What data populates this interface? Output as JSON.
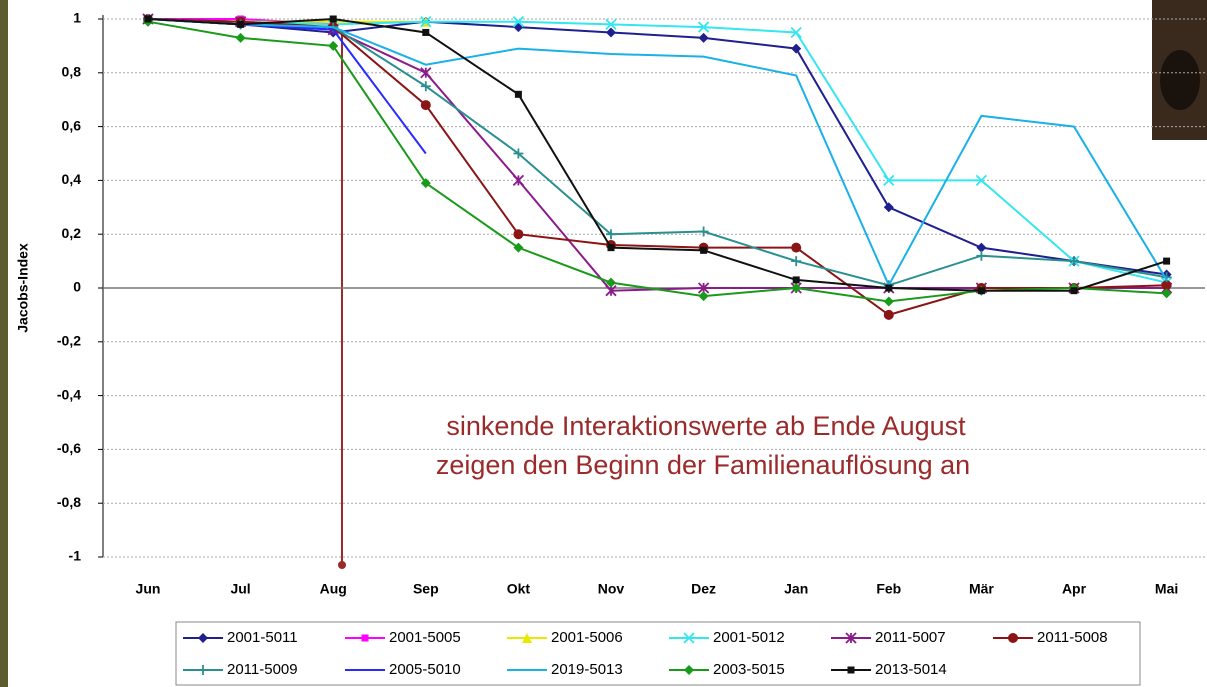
{
  "chart_data": {
    "type": "line",
    "y_label": "Jacobs-Index",
    "annotations": [
      "sinkende Interaktionswerte ab Ende August",
      "zeigen den Beginn der Familienauflösung an"
    ],
    "categories": [
      "Jun",
      "Jul",
      "Aug",
      "Sep",
      "Okt",
      "Nov",
      "Dez",
      "Jan",
      "Feb",
      "Mär",
      "Apr",
      "Mai"
    ],
    "ylim": [
      -1,
      1
    ],
    "yticks": [
      {
        "value": -1,
        "label": "-1"
      },
      {
        "value": -0.8,
        "label": "-0,8"
      },
      {
        "value": -0.6,
        "label": "-0,6"
      },
      {
        "value": -0.4,
        "label": "-0,4"
      },
      {
        "value": -0.2,
        "label": "-0,2"
      },
      0,
      {
        "value": 0.2,
        "label": "0,2"
      },
      {
        "value": 0.4,
        "label": "0,4"
      },
      {
        "value": 0.6,
        "label": "0,6"
      },
      {
        "value": 0.8,
        "label": "0,8"
      },
      1
    ],
    "grid": true,
    "series": [
      {
        "name": "2001-5011",
        "color": "#1f1f8f",
        "marker": "diamond",
        "values": [
          1,
          0.98,
          0.95,
          0.99,
          0.97,
          0.95,
          0.93,
          0.89,
          0.3,
          0.15,
          0.1,
          0.05
        ]
      },
      {
        "name": "2001-5005",
        "color": "#ff00ff",
        "marker": "square",
        "values": [
          1,
          1,
          0.98,
          null,
          null,
          null,
          null,
          null,
          null,
          null,
          null,
          null
        ]
      },
      {
        "name": "2001-5006",
        "color": "#e8e800",
        "marker": "triangle",
        "values": [
          1,
          0.99,
          0.99,
          0.99,
          null,
          null,
          null,
          null,
          null,
          null,
          null,
          null
        ]
      },
      {
        "name": "2001-5012",
        "color": "#33e6f0",
        "marker": "x",
        "values": [
          1,
          0.99,
          0.98,
          0.99,
          0.99,
          0.98,
          0.97,
          0.95,
          0.4,
          0.4,
          0.1,
          0.02
        ]
      },
      {
        "name": "2011-5007",
        "color": "#8b1a8b",
        "marker": "star",
        "values": [
          1,
          0.99,
          0.96,
          0.8,
          0.4,
          -0.01,
          0,
          0,
          0,
          0,
          0,
          0
        ]
      },
      {
        "name": "2011-5008",
        "color": "#8b1414",
        "marker": "circle",
        "values": [
          1,
          0.99,
          0.97,
          0.68,
          0.2,
          0.16,
          0.15,
          0.15,
          -0.1,
          0,
          0,
          0.01
        ]
      },
      {
        "name": "2011-5009",
        "color": "#2a8f8f",
        "marker": "plus",
        "values": [
          1,
          0.98,
          0.97,
          0.75,
          0.5,
          0.2,
          0.21,
          0.1,
          0.01,
          0.12,
          0.1,
          0.04
        ]
      },
      {
        "name": "2005-5010",
        "color": "#2a2aff",
        "marker": "none",
        "values": [
          1,
          0.98,
          0.96,
          0.5,
          null,
          null,
          null,
          null,
          null,
          null,
          null,
          null
        ]
      },
      {
        "name": "2019-5013",
        "color": "#1ab0e8",
        "marker": "none",
        "values": [
          1,
          0.98,
          0.97,
          0.83,
          0.89,
          0.87,
          0.86,
          0.79,
          0.01,
          0.64,
          0.6,
          0.03
        ]
      },
      {
        "name": "2003-5015",
        "color": "#1a9a1a",
        "marker": "diamond",
        "values": [
          0.99,
          0.93,
          0.9,
          0.39,
          0.15,
          0.02,
          -0.03,
          0,
          -0.05,
          -0.01,
          0,
          -0.02
        ]
      },
      {
        "name": "2013-5014",
        "color": "#111111",
        "marker": "square",
        "values": [
          1,
          0.98,
          1,
          0.95,
          0.72,
          0.15,
          0.14,
          0.03,
          0,
          -0.01,
          -0.01,
          0.1
        ]
      }
    ]
  }
}
